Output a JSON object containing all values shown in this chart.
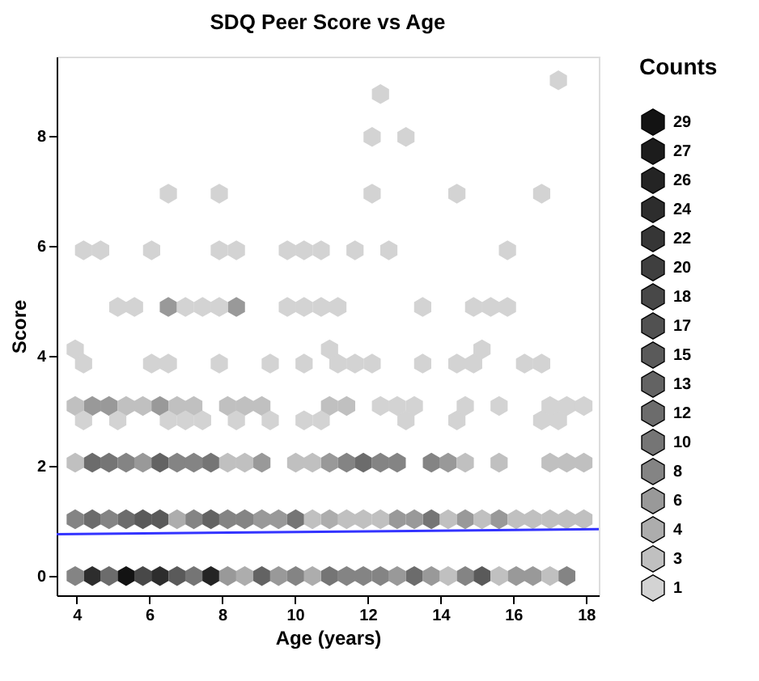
{
  "chart_data": {
    "type": "scatter",
    "title": "SDQ Peer Score vs Age",
    "xlabel": "Age (years)",
    "ylabel": "Score",
    "legend_title": "Counts",
    "legend": "right",
    "xlim": [
      3.45,
      18.35
    ],
    "xticks": [
      4,
      6,
      8,
      10,
      12,
      14,
      16,
      18
    ],
    "ylim": [
      -0.35,
      9.44
    ],
    "yticks": [
      0,
      2,
      4,
      6,
      8
    ],
    "grid": false,
    "series": [
      {
        "name": "29",
        "color": "#131313",
        "x": [
          5.36
        ],
        "values": [
          0
        ]
      },
      {
        "name": "27",
        "color": "#1c1c1c"
      },
      {
        "name": "26",
        "color": "#242424",
        "x": [
          7.69
        ],
        "values": [
          0
        ]
      },
      {
        "name": "24",
        "color": "#2d2d2d",
        "x": [
          4.43,
          6.29
        ],
        "values": [
          0,
          0
        ]
      },
      {
        "name": "22",
        "color": "#363636"
      },
      {
        "name": "20",
        "color": "#3f3f3f"
      },
      {
        "name": "18",
        "color": "#484848",
        "x": [
          5.82
        ],
        "values": [
          0
        ]
      },
      {
        "name": "17",
        "color": "#515151"
      },
      {
        "name": "15",
        "color": "#5a5a5a",
        "x": [
          6.76,
          15.14,
          5.82,
          6.29
        ],
        "values": [
          0,
          0,
          1.03,
          1.03
        ]
      },
      {
        "name": "13",
        "color": "#636363",
        "x": [
          9.09,
          7.69,
          6.29
        ],
        "values": [
          0,
          1.03,
          2.06
        ]
      },
      {
        "name": "12",
        "color": "#6c6c6c",
        "x": [
          4.89,
          13.28,
          4.43,
          5.36,
          4.43,
          11.88
        ],
        "values": [
          0,
          0,
          1.03,
          1.03,
          2.06,
          2.06
        ]
      },
      {
        "name": "10",
        "color": "#757575",
        "x": [
          7.22,
          10.95,
          10.02,
          13.75,
          4.89,
          7.69
        ],
        "values": [
          0,
          0,
          1.03,
          1.03,
          2.06,
          2.06
        ]
      },
      {
        "name": "8",
        "color": "#848484",
        "x": [
          3.96,
          10.02,
          11.42,
          11.88,
          12.35,
          14.68,
          17.47,
          3.96,
          4.89,
          7.22,
          8.15,
          8.62,
          5.36,
          6.76,
          7.22,
          11.42,
          12.35,
          12.81,
          13.75
        ],
        "values": [
          0,
          0,
          0,
          0,
          0,
          0,
          0,
          1.03,
          1.03,
          1.03,
          1.03,
          1.03,
          2.06,
          2.06,
          2.06,
          2.06,
          2.06,
          2.06,
          2.06
        ]
      },
      {
        "name": "6",
        "color": "#999999",
        "x": [
          8.15,
          9.55,
          12.81,
          13.75,
          16.08,
          16.54,
          9.09,
          9.55,
          12.81,
          13.28,
          14.68,
          15.61,
          5.82,
          9.09,
          10.95,
          14.21,
          4.43,
          4.89,
          6.29,
          6.52,
          8.39
        ],
        "values": [
          0,
          0,
          0,
          0,
          0,
          0,
          1.03,
          1.03,
          1.03,
          1.03,
          1.03,
          1.03,
          2.06,
          2.06,
          2.06,
          2.06,
          3.09,
          3.09,
          3.09,
          4.89,
          4.89
        ]
      },
      {
        "name": "4",
        "color": "#adadad",
        "x": [
          8.62,
          10.48,
          6.76,
          10.95
        ],
        "values": [
          0,
          0,
          1.03,
          1.03
        ]
      },
      {
        "name": "3",
        "color": "#c0c0c0",
        "x": [
          14.21,
          15.61,
          17.01,
          10.48,
          11.42,
          11.88,
          12.35,
          14.21,
          15.14,
          16.08,
          16.54,
          17.01,
          17.47,
          17.94,
          3.96,
          8.15,
          8.62,
          10.02,
          10.48,
          14.68,
          15.61,
          17.01,
          17.47,
          17.94,
          3.96,
          5.36,
          5.82,
          6.76,
          7.22,
          8.15,
          8.62,
          9.09,
          10.95,
          11.42
        ],
        "values": [
          0,
          0,
          0,
          1.03,
          1.03,
          1.03,
          1.03,
          1.03,
          1.03,
          1.03,
          1.03,
          1.03,
          1.03,
          1.03,
          2.06,
          2.06,
          2.06,
          2.06,
          2.06,
          2.06,
          2.06,
          2.06,
          2.06,
          2.06,
          3.09,
          3.09,
          3.09,
          3.09,
          3.09,
          3.09,
          3.09,
          3.09,
          3.09,
          3.09
        ]
      },
      {
        "name": "1",
        "color": "#d3d3d3",
        "x": [
          4.19,
          5.13,
          6.52,
          6.99,
          7.46,
          8.39,
          9.32,
          10.25,
          10.72,
          13.05,
          14.45,
          16.78,
          17.24,
          12.35,
          12.81,
          13.28,
          14.68,
          15.61,
          17.01,
          17.47,
          17.94,
          4.19,
          6.06,
          6.52,
          7.92,
          9.32,
          10.25,
          11.18,
          11.65,
          12.12,
          13.51,
          14.45,
          14.91,
          16.31,
          16.78,
          3.96,
          10.95,
          15.14,
          5.13,
          5.59,
          6.99,
          7.46,
          7.92,
          9.79,
          10.25,
          10.72,
          11.18,
          13.51,
          14.91,
          15.38,
          15.84,
          4.19,
          4.66,
          6.06,
          7.92,
          8.39,
          9.79,
          10.25,
          10.72,
          11.65,
          12.58,
          15.84,
          6.52,
          7.92,
          12.12,
          14.45,
          16.78,
          12.12,
          13.05,
          12.35,
          17.24
        ],
        "values": [
          2.83,
          2.83,
          2.83,
          2.83,
          2.83,
          2.83,
          2.83,
          2.83,
          2.83,
          2.83,
          2.83,
          2.83,
          2.83,
          3.09,
          3.09,
          3.09,
          3.09,
          3.09,
          3.09,
          3.09,
          3.09,
          3.86,
          3.86,
          3.86,
          3.86,
          3.86,
          3.86,
          3.86,
          3.86,
          3.86,
          3.86,
          3.86,
          3.86,
          3.86,
          3.86,
          4.12,
          4.12,
          4.12,
          4.89,
          4.89,
          4.89,
          4.89,
          4.89,
          4.89,
          4.89,
          4.89,
          4.89,
          4.89,
          4.89,
          4.89,
          4.89,
          5.92,
          5.92,
          5.92,
          5.92,
          5.92,
          5.92,
          5.92,
          5.92,
          5.92,
          5.92,
          5.92,
          6.95,
          6.95,
          6.95,
          6.95,
          6.95,
          7.98,
          7.98,
          8.76,
          9.01
        ]
      },
      {
        "type": "line",
        "x": [
          3.45,
          18.35
        ],
        "values": [
          0.76,
          0.85
        ],
        "color": "#3333ff"
      }
    ]
  }
}
